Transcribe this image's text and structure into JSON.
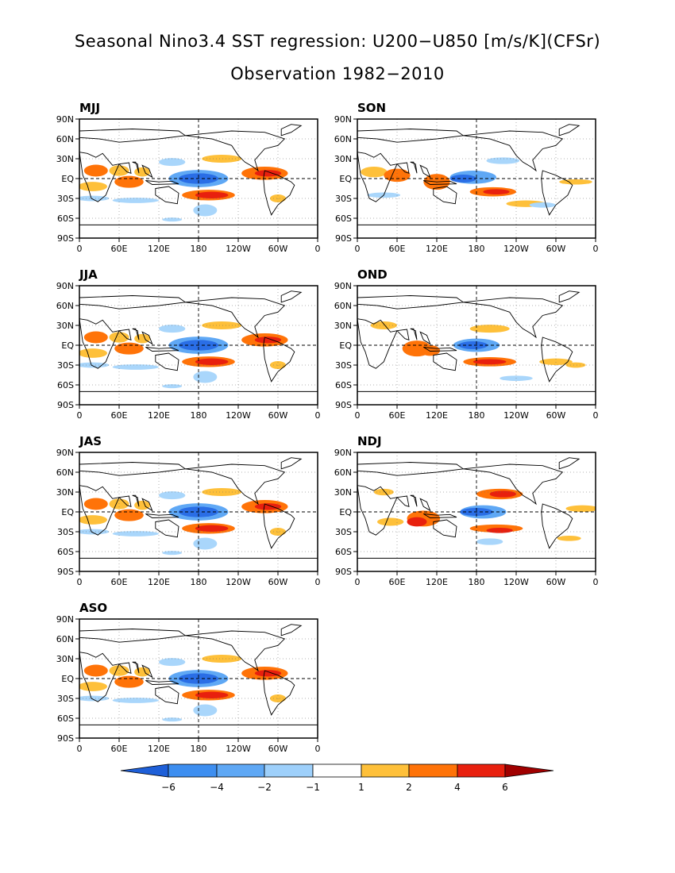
{
  "title": "Seasonal Nino3.4 SST regression: U200−U850 [m/s/K](CFSr)",
  "subtitle": "Observation 1982−2010",
  "lat_labels": [
    "90N",
    "60N",
    "30N",
    "EQ",
    "30S",
    "60S",
    "90S"
  ],
  "lon_labels": [
    "0",
    "60E",
    "120E",
    "180",
    "120W",
    "60W",
    "0"
  ],
  "panels": [
    {
      "label": "MJJ"
    },
    {
      "label": "SON"
    },
    {
      "label": "JJA"
    },
    {
      "label": "OND"
    },
    {
      "label": "JAS"
    },
    {
      "label": "NDJ"
    },
    {
      "label": "ASO"
    }
  ],
  "colorbar": {
    "labels": [
      "−6",
      "−4",
      "−2",
      "−1",
      "1",
      "2",
      "4",
      "6"
    ],
    "colors": [
      "#1e5fd8",
      "#3d8ef0",
      "#5fa8f5",
      "#9ed0fb",
      "#ffffff",
      "#fec03a",
      "#ff7308",
      "#e8200e",
      "#a00000"
    ]
  },
  "colors": {
    "strong_neg": "#2a6ee6",
    "neg": "#5fa8f5",
    "weak_neg": "#a9d6fb",
    "weak_pos": "#fec03a",
    "pos": "#ff7308",
    "strong_pos": "#e8200e"
  }
}
